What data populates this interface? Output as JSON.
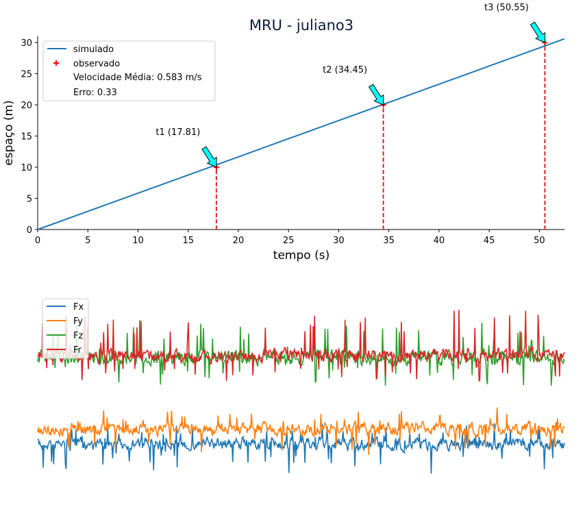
{
  "chart_data": [
    {
      "type": "line",
      "title": "MRU - juliano3",
      "xlabel": "tempo (s)",
      "ylabel": "espaço (m)",
      "xlim": [
        0,
        52.5
      ],
      "ylim": [
        0,
        31
      ],
      "xticks": [
        0,
        5,
        10,
        15,
        20,
        25,
        30,
        35,
        40,
        45,
        50
      ],
      "yticks": [
        0,
        5,
        10,
        15,
        20,
        25,
        30
      ],
      "grid": false,
      "legend_position": "top-left",
      "series": [
        {
          "name": "simulado",
          "kind": "line",
          "color": "#1f77b4",
          "x": [
            0,
            52.5
          ],
          "y": [
            0,
            30.6
          ]
        },
        {
          "name": "observado",
          "kind": "scatter",
          "marker": "plus",
          "color": "#ff0000",
          "x": [
            17.81,
            34.45,
            50.55
          ],
          "y": [
            10,
            20,
            30
          ]
        }
      ],
      "legend_extra": [
        "Velocidade Média: 0.583 m/s",
        "Erro: 0.33"
      ],
      "annotations": [
        {
          "text": "t1 (17.81)",
          "x": 17.81,
          "y": 10
        },
        {
          "text": "t2 (34.45)",
          "x": 34.45,
          "y": 20
        },
        {
          "text": "t3 (50.55)",
          "x": 50.55,
          "y": 30
        }
      ],
      "arrow_color": "#00ffff",
      "vline_color": "#d62728"
    },
    {
      "type": "line",
      "title": "",
      "axes_visible": false,
      "legend_position": "top-left",
      "series": [
        {
          "name": "Fx",
          "color": "#1f77b4"
        },
        {
          "name": "Fy",
          "color": "#ff7f0e"
        },
        {
          "name": "Fz",
          "color": "#2ca02c"
        },
        {
          "name": "Fr",
          "color": "#d62728"
        }
      ]
    }
  ]
}
